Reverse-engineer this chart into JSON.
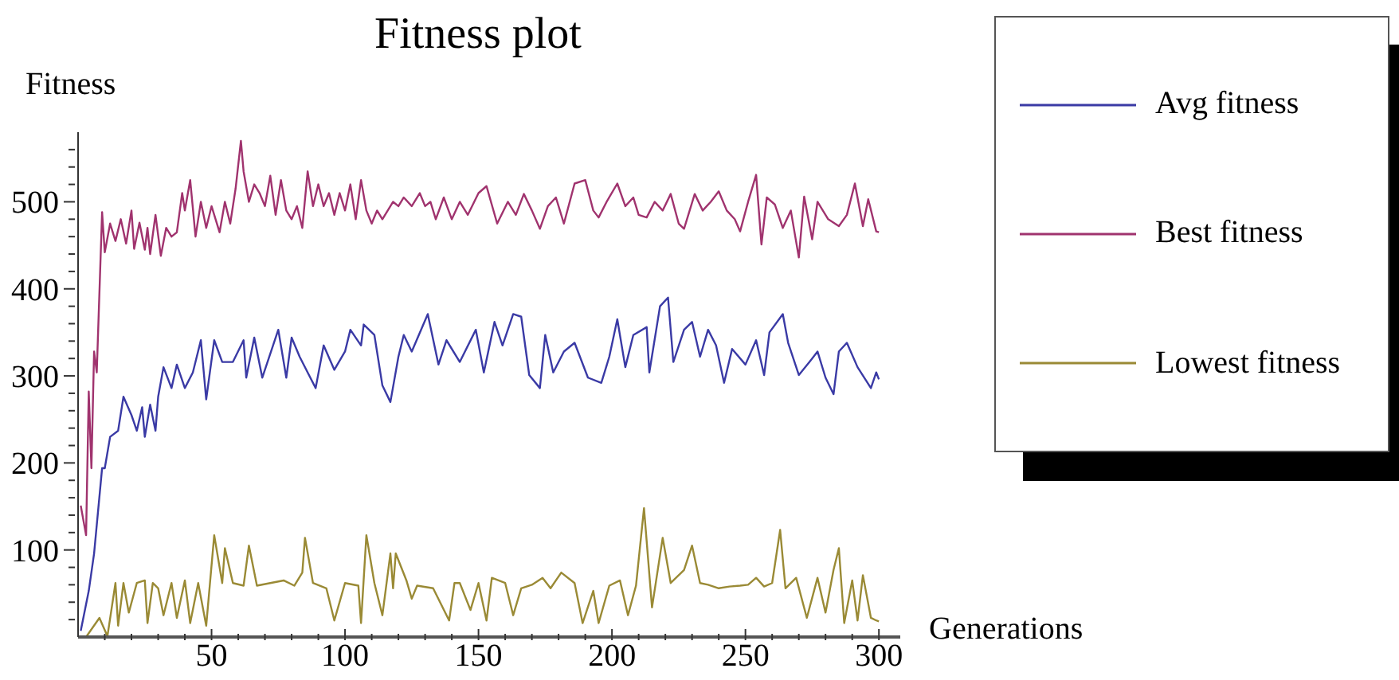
{
  "chart_data": {
    "type": "line",
    "title": "Fitness plot",
    "xlabel": "Generations",
    "ylabel": "Fitness",
    "legend": "right",
    "xlim": [
      0,
      308
    ],
    "ylim": [
      0,
      580
    ],
    "xticks": [
      {
        "value": 10,
        "label": null
      },
      {
        "value": 20,
        "label": null
      },
      {
        "value": 30,
        "label": null
      },
      {
        "value": 40,
        "label": null
      },
      50,
      {
        "value": 60,
        "label": null
      },
      {
        "value": 70,
        "label": null
      },
      {
        "value": 80,
        "label": null
      },
      {
        "value": 90,
        "label": null
      },
      100,
      {
        "value": 110,
        "label": null
      },
      {
        "value": 120,
        "label": null
      },
      {
        "value": 130,
        "label": null
      },
      {
        "value": 140,
        "label": null
      },
      150,
      {
        "value": 160,
        "label": null
      },
      {
        "value": 170,
        "label": null
      },
      {
        "value": 180,
        "label": null
      },
      {
        "value": 190,
        "label": null
      },
      200,
      {
        "value": 210,
        "label": null
      },
      {
        "value": 220,
        "label": null
      },
      {
        "value": 230,
        "label": null
      },
      {
        "value": 240,
        "label": null
      },
      250,
      {
        "value": 260,
        "label": null
      },
      {
        "value": 270,
        "label": null
      },
      {
        "value": 280,
        "label": null
      },
      {
        "value": 290,
        "label": null
      },
      300
    ],
    "yticks": [
      {
        "value": 20,
        "label": null
      },
      {
        "value": 40,
        "label": null
      },
      {
        "value": 60,
        "label": null
      },
      {
        "value": 80,
        "label": null
      },
      100,
      {
        "value": 120,
        "label": null
      },
      {
        "value": 140,
        "label": null
      },
      {
        "value": 160,
        "label": null
      },
      {
        "value": 180,
        "label": null
      },
      200,
      {
        "value": 220,
        "label": null
      },
      {
        "value": 240,
        "label": null
      },
      {
        "value": 260,
        "label": null
      },
      {
        "value": 280,
        "label": null
      },
      300,
      {
        "value": 320,
        "label": null
      },
      {
        "value": 340,
        "label": null
      },
      {
        "value": 360,
        "label": null
      },
      {
        "value": 380,
        "label": null
      },
      400,
      {
        "value": 420,
        "label": null
      },
      {
        "value": 440,
        "label": null
      },
      {
        "value": 460,
        "label": null
      },
      {
        "value": 480,
        "label": null
      },
      500,
      {
        "value": 520,
        "label": null
      },
      {
        "value": 540,
        "label": null
      },
      {
        "value": 560,
        "label": null
      }
    ],
    "series": [
      {
        "name": "Avg fitness",
        "color": "#3a3aa5",
        "x": [
          1,
          4,
          6,
          9,
          10,
          12,
          15,
          17,
          20,
          22,
          24,
          25,
          27,
          29,
          30,
          32,
          35,
          37,
          40,
          43,
          46,
          48,
          51,
          54,
          58,
          62,
          63,
          66,
          69,
          75,
          78,
          80,
          83,
          86,
          89,
          92,
          96,
          100,
          102,
          106,
          107,
          111,
          114,
          117,
          120,
          122,
          125,
          131,
          135,
          138,
          143,
          149,
          152,
          156,
          159,
          163,
          166,
          169,
          173,
          175,
          178,
          182,
          186,
          191,
          196,
          199,
          202,
          205,
          208,
          213,
          214,
          218,
          221,
          223,
          227,
          230,
          233,
          236,
          239,
          242,
          245,
          250,
          254,
          257,
          259,
          264,
          266,
          270,
          274,
          277,
          280,
          283,
          285,
          288,
          292,
          297,
          299,
          300
        ],
        "values": [
          7,
          53,
          96,
          194,
          194,
          230,
          237,
          276,
          255,
          237,
          264,
          230,
          267,
          237,
          276,
          310,
          286,
          313,
          286,
          304,
          341,
          273,
          341,
          316,
          316,
          341,
          298,
          344,
          298,
          353,
          298,
          344,
          322,
          304,
          286,
          335,
          307,
          328,
          353,
          335,
          359,
          347,
          289,
          270,
          322,
          347,
          328,
          371,
          313,
          341,
          316,
          353,
          304,
          362,
          335,
          371,
          368,
          301,
          286,
          347,
          304,
          328,
          338,
          298,
          292,
          322,
          365,
          310,
          347,
          356,
          304,
          380,
          390,
          316,
          353,
          362,
          322,
          353,
          335,
          292,
          331,
          313,
          341,
          301,
          350,
          371,
          338,
          301,
          316,
          328,
          298,
          279,
          328,
          338,
          310,
          286,
          304,
          296
        ]
      },
      {
        "name": "Best fitness",
        "color": "#a0336e",
        "x": [
          1,
          3,
          4,
          5,
          6,
          7,
          9,
          10,
          12,
          14,
          16,
          18,
          20,
          21,
          23,
          25,
          26,
          27,
          29,
          31,
          33,
          35,
          37,
          39,
          40,
          42,
          44,
          46,
          48,
          50,
          53,
          55,
          57,
          59,
          61,
          62,
          64,
          66,
          68,
          70,
          72,
          74,
          76,
          78,
          80,
          82,
          84,
          86,
          88,
          90,
          92,
          94,
          96,
          98,
          100,
          102,
          104,
          106,
          108,
          110,
          112,
          114,
          116,
          118,
          120,
          122,
          125,
          128,
          130,
          132,
          134,
          137,
          140,
          143,
          146,
          150,
          153,
          157,
          161,
          164,
          167,
          170,
          173,
          176,
          179,
          182,
          186,
          190,
          193,
          195,
          198,
          202,
          205,
          208,
          210,
          213,
          216,
          219,
          222,
          225,
          227,
          231,
          234,
          237,
          240,
          243,
          246,
          248,
          251,
          254,
          256,
          258,
          261,
          264,
          267,
          270,
          272,
          275,
          277,
          281,
          285,
          288,
          291,
          294,
          296,
          299,
          300
        ],
        "values": [
          151,
          117,
          282,
          194,
          328,
          304,
          488,
          442,
          475,
          455,
          480,
          452,
          490,
          446,
          476,
          445,
          470,
          440,
          485,
          438,
          470,
          460,
          465,
          510,
          490,
          525,
          460,
          500,
          470,
          495,
          465,
          500,
          475,
          515,
          570,
          535,
          500,
          520,
          510,
          495,
          530,
          485,
          525,
          490,
          480,
          495,
          470,
          535,
          495,
          520,
          495,
          510,
          485,
          510,
          490,
          520,
          480,
          525,
          490,
          475,
          490,
          480,
          490,
          500,
          495,
          505,
          495,
          510,
          495,
          500,
          480,
          505,
          480,
          500,
          485,
          510,
          518,
          475,
          500,
          485,
          509,
          490,
          469,
          495,
          505,
          475,
          521,
          525,
          490,
          482,
          500,
          521,
          495,
          505,
          485,
          482,
          500,
          490,
          509,
          475,
          469,
          509,
          490,
          500,
          512,
          490,
          480,
          466,
          500,
          531,
          451,
          505,
          497,
          470,
          490,
          436,
          506,
          457,
          500,
          480,
          472,
          485,
          521,
          472,
          503,
          466,
          465
        ]
      },
      {
        "name": "Lowest fitness",
        "color": "#9a8a35",
        "x": [
          3,
          8,
          11,
          14,
          15,
          17,
          19,
          22,
          25,
          26,
          28,
          30,
          32,
          35,
          37,
          40,
          42,
          45,
          48,
          51,
          54,
          55,
          58,
          62,
          64,
          67,
          72,
          77,
          81,
          84,
          85,
          88,
          93,
          96,
          100,
          105,
          106,
          108,
          111,
          114,
          117,
          118,
          119,
          123,
          125,
          127,
          133,
          139,
          141,
          143,
          147,
          150,
          153,
          155,
          160,
          163,
          166,
          170,
          174,
          177,
          181,
          186,
          189,
          193,
          195,
          199,
          203,
          206,
          209,
          212,
          215,
          219,
          222,
          227,
          230,
          233,
          236,
          240,
          244,
          248,
          251,
          254,
          257,
          260,
          263,
          265,
          269,
          273,
          277,
          280,
          283,
          285,
          287,
          290,
          292,
          294,
          297,
          299,
          300
        ],
        "values": [
          0,
          22,
          1,
          62,
          13,
          62,
          28,
          62,
          65,
          16,
          62,
          56,
          25,
          62,
          22,
          65,
          16,
          62,
          13,
          117,
          62,
          102,
          62,
          59,
          105,
          59,
          62,
          65,
          59,
          74,
          114,
          62,
          56,
          19,
          62,
          59,
          16,
          117,
          62,
          25,
          96,
          56,
          96,
          65,
          44,
          59,
          56,
          19,
          62,
          62,
          31,
          62,
          19,
          68,
          62,
          25,
          56,
          60,
          68,
          56,
          74,
          62,
          16,
          53,
          16,
          59,
          65,
          25,
          59,
          148,
          34,
          114,
          62,
          77,
          105,
          62,
          60,
          56,
          58,
          59,
          60,
          68,
          58,
          62,
          123,
          56,
          68,
          22,
          68,
          28,
          77,
          102,
          16,
          65,
          19,
          71,
          22,
          19,
          18
        ]
      }
    ]
  }
}
